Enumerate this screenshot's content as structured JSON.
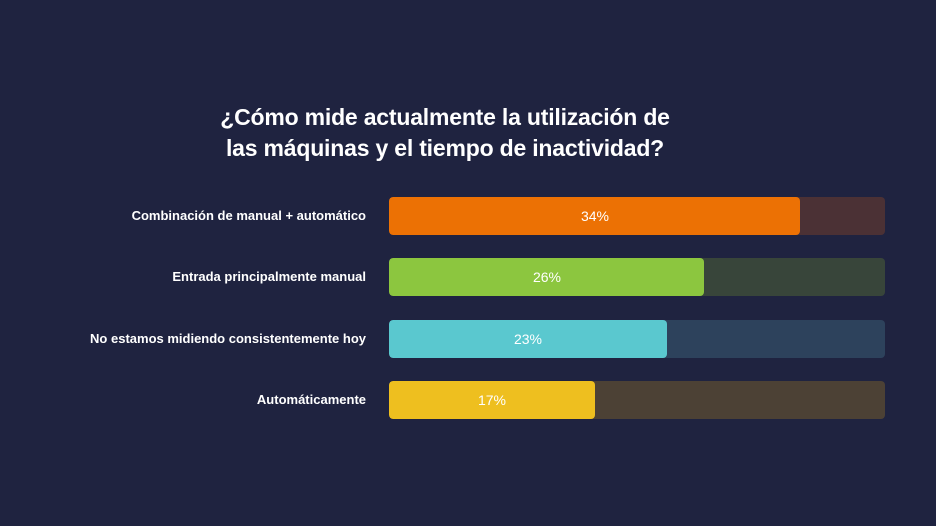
{
  "chart_data": {
    "type": "bar",
    "orientation": "horizontal",
    "title_lines": [
      "¿Cómo mide actualmente la utilización de",
      "las máquinas y el tiempo de inactividad?"
    ],
    "categories": [
      "Combinación de manual + automático",
      "Entrada principalmente manual",
      "No estamos midiendo consistentemente hoy",
      "Automáticamente"
    ],
    "values": [
      34,
      26,
      23,
      17
    ],
    "value_labels": [
      "34%",
      "26%",
      "23%",
      "17%"
    ],
    "xlim": [
      0,
      41
    ],
    "bar_colors": [
      "#ec7104",
      "#8cc63f",
      "#5ac8cf",
      "#eebf1f"
    ],
    "track_colors": [
      "#4b3135",
      "#38453a",
      "#2d425c",
      "#4c4135"
    ],
    "grid": false,
    "legend": "none"
  }
}
